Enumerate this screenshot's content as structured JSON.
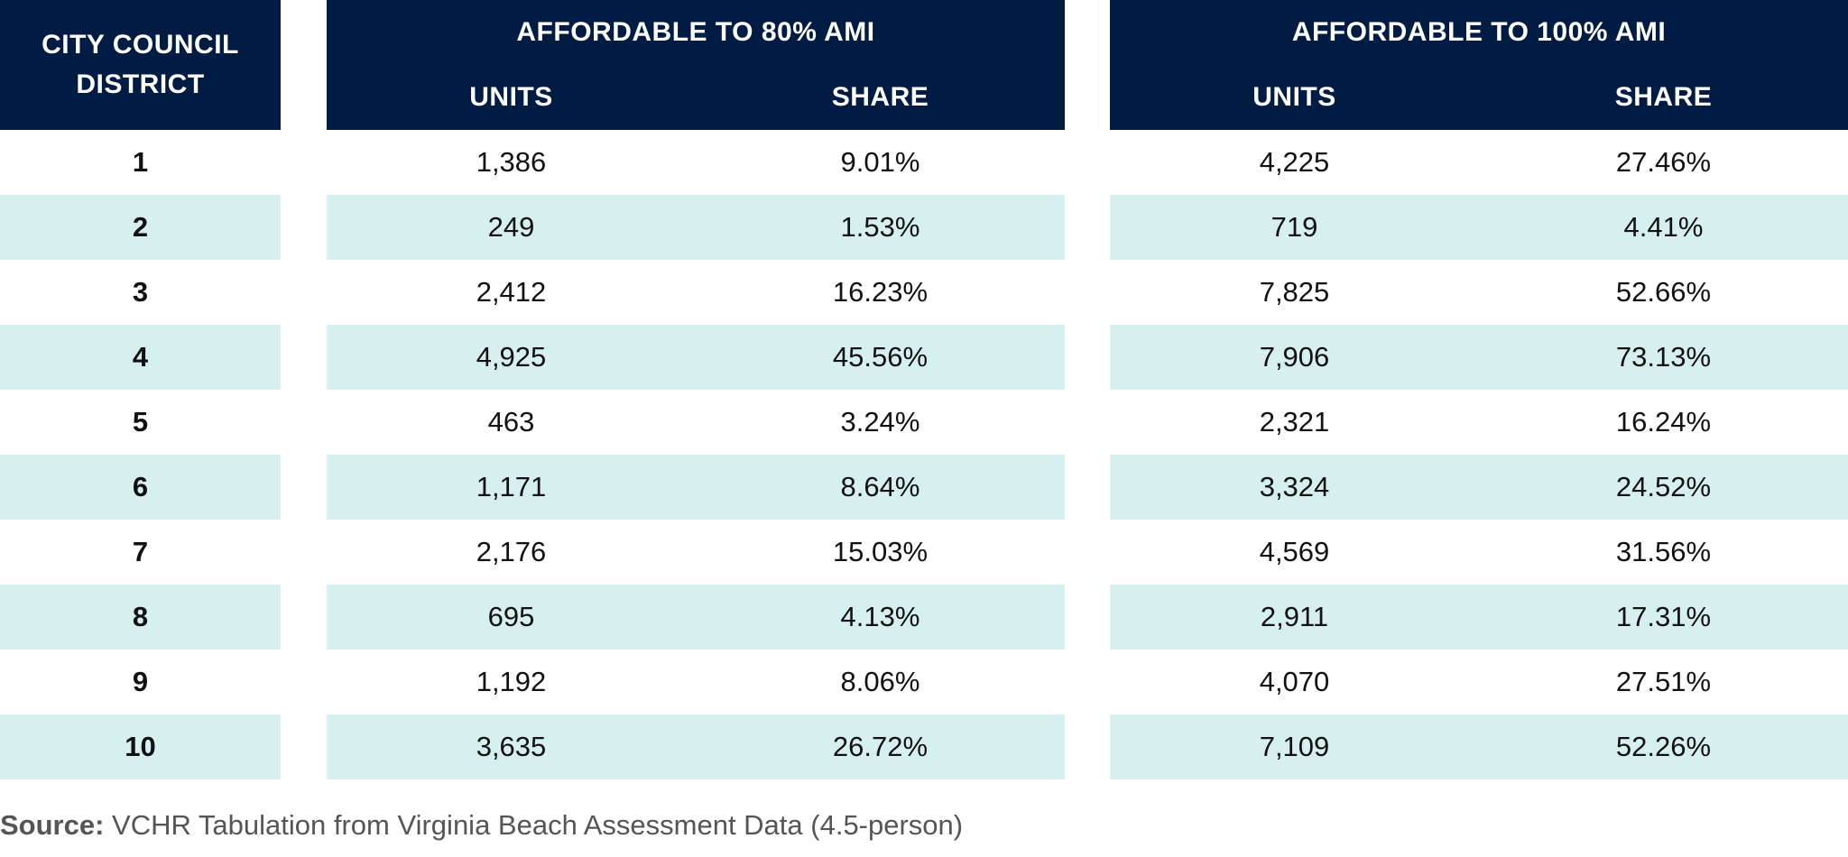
{
  "header": {
    "district_line1": "CITY COUNCIL",
    "district_line2": "DISTRICT",
    "group80_title": "AFFORDABLE TO 80% AMI",
    "group100_title": "AFFORDABLE TO 100% AMI",
    "units_label": "UNITS",
    "share_label": "SHARE"
  },
  "rows": [
    {
      "district": "1",
      "units80": "1,386",
      "share80": "9.01%",
      "units100": "4,225",
      "share100": "27.46%"
    },
    {
      "district": "2",
      "units80": "249",
      "share80": "1.53%",
      "units100": "719",
      "share100": "4.41%"
    },
    {
      "district": "3",
      "units80": "2,412",
      "share80": "16.23%",
      "units100": "7,825",
      "share100": "52.66%"
    },
    {
      "district": "4",
      "units80": "4,925",
      "share80": "45.56%",
      "units100": "7,906",
      "share100": "73.13%"
    },
    {
      "district": "5",
      "units80": "463",
      "share80": "3.24%",
      "units100": "2,321",
      "share100": "16.24%"
    },
    {
      "district": "6",
      "units80": "1,171",
      "share80": "8.64%",
      "units100": "3,324",
      "share100": "24.52%"
    },
    {
      "district": "7",
      "units80": "2,176",
      "share80": "15.03%",
      "units100": "4,569",
      "share100": "31.56%"
    },
    {
      "district": "8",
      "units80": "695",
      "share80": "4.13%",
      "units100": "2,911",
      "share100": "17.31%"
    },
    {
      "district": "9",
      "units80": "1,192",
      "share80": "8.06%",
      "units100": "4,070",
      "share100": "27.51%"
    },
    {
      "district": "10",
      "units80": "3,635",
      "share80": "26.72%",
      "units100": "7,109",
      "share100": "52.26%"
    }
  ],
  "source": {
    "label": "Source:",
    "text": " VCHR Tabulation from Virginia Beach Assessment Data (4.5-person)"
  },
  "colors": {
    "header_bg": "#001c43",
    "row_shade": "#d6f0ef"
  }
}
